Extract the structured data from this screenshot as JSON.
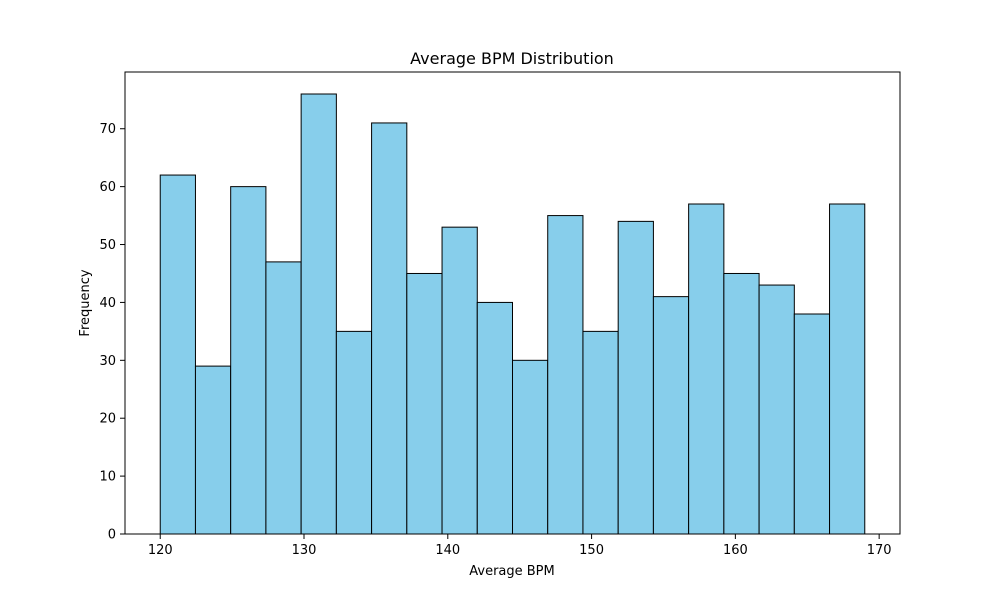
{
  "chart_data": {
    "type": "bar",
    "title": "Average BPM Distribution",
    "xlabel": "Average BPM",
    "ylabel": "Frequency",
    "bin_start": 120,
    "bin_width": 2.45,
    "values": [
      62,
      29,
      60,
      47,
      76,
      35,
      71,
      45,
      53,
      40,
      30,
      55,
      35,
      54,
      41,
      57,
      45,
      43,
      38,
      57
    ],
    "xlim": [
      117.55,
      171.45
    ],
    "ylim": [
      0,
      79.8
    ],
    "xticks": [
      120,
      130,
      140,
      150,
      160,
      170
    ],
    "yticks": [
      0,
      10,
      20,
      30,
      40,
      50,
      60,
      70
    ],
    "grid": false,
    "colors": {
      "bar_fill": "#87ceeb",
      "bar_edge": "#000000"
    }
  }
}
